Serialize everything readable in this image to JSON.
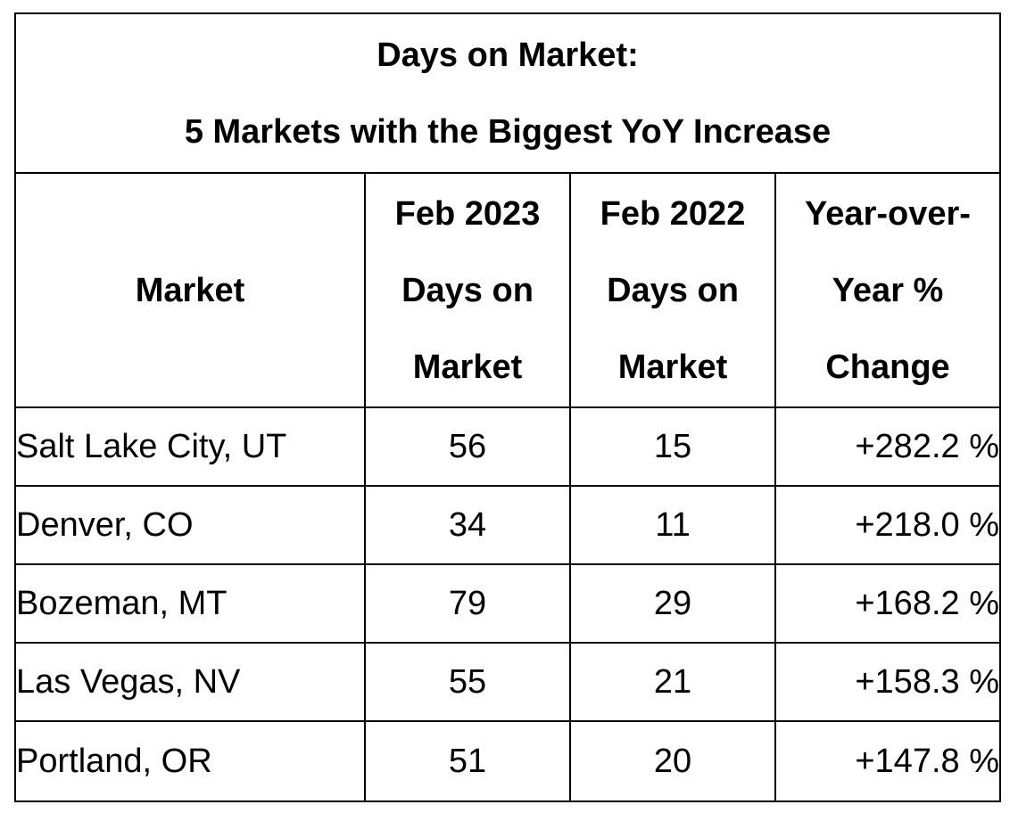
{
  "chart_data": {
    "type": "table",
    "title": "Days on Market:",
    "subtitle": "5 Markets with the Biggest YoY Increase",
    "columns": [
      "Market",
      "Feb 2023\nDays on\nMarket",
      "Feb 2022\nDays on\nMarket",
      "Year-over-\nYear %\nChange"
    ],
    "rows": [
      {
        "market": "Salt Lake City, UT",
        "feb2023": "56",
        "feb2022": "15",
        "yoy": "+282.2 %"
      },
      {
        "market": "Denver, CO",
        "feb2023": "34",
        "feb2022": "11",
        "yoy": "+218.0 %"
      },
      {
        "market": "Bozeman, MT",
        "feb2023": "79",
        "feb2022": "29",
        "yoy": "+168.2 %"
      },
      {
        "market": "Las Vegas, NV",
        "feb2023": "55",
        "feb2022": "21",
        "yoy": "+158.3 %"
      },
      {
        "market": "Portland, OR",
        "feb2023": "51",
        "feb2022": "20",
        "yoy": "+147.8 %"
      }
    ]
  }
}
